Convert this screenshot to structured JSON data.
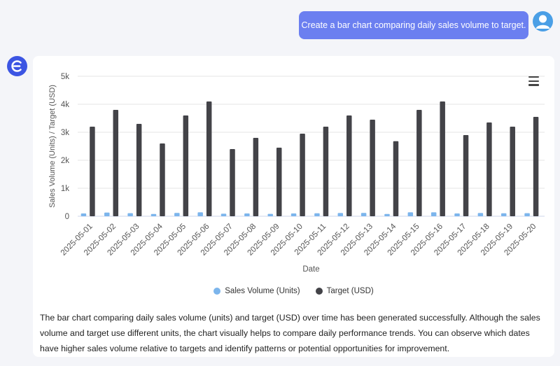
{
  "user_message": "Create a bar chart comparing daily sales volume to target.",
  "icons": {
    "user_avatar": "user-avatar-icon",
    "bot_avatar": "assistant-logo-icon",
    "menu": "hamburger-menu-icon"
  },
  "colors": {
    "user_bubble": "#6b7ff0",
    "sales_series": "#7cb5ec",
    "target_series": "#434348",
    "bot_avatar": "#3c55e3"
  },
  "answer_text": "The bar chart comparing daily sales volume (units) and target (USD) over time has been generated successfully. Although the sales volume and target use different units, the chart visually helps to compare daily performance trends. You can observe which dates have higher sales volume relative to targets and identify patterns or potential opportunities for improvement.",
  "chart_data": {
    "type": "bar",
    "xlabel": "Date",
    "ylabel": "Sales Volume (Units) / Target (USD)",
    "ylim": [
      0,
      5000
    ],
    "yticks": [
      0,
      1000,
      2000,
      3000,
      4000,
      5000
    ],
    "ytick_labels": [
      "0",
      "1k",
      "2k",
      "3k",
      "4k",
      "5k"
    ],
    "grid": true,
    "legend_position": "bottom-center",
    "categories": [
      "2025-05-01",
      "2025-05-02",
      "2025-05-03",
      "2025-05-04",
      "2025-05-05",
      "2025-05-06",
      "2025-05-07",
      "2025-05-08",
      "2025-05-09",
      "2025-05-10",
      "2025-05-11",
      "2025-05-12",
      "2025-05-13",
      "2025-05-14",
      "2025-05-15",
      "2025-05-16",
      "2025-05-17",
      "2025-05-18",
      "2025-05-19",
      "2025-05-20"
    ],
    "series": [
      {
        "name": "Sales Volume (Units)",
        "color": "#7cb5ec",
        "values": [
          100,
          130,
          110,
          80,
          120,
          140,
          90,
          100,
          85,
          100,
          105,
          115,
          120,
          80,
          140,
          140,
          100,
          115,
          105,
          110
        ]
      },
      {
        "name": "Target (USD)",
        "color": "#434348",
        "values": [
          3200,
          3800,
          3300,
          2600,
          3600,
          4100,
          2400,
          2800,
          2450,
          2950,
          3200,
          3600,
          3450,
          2680,
          3800,
          4100,
          2900,
          3350,
          3200,
          3550
        ]
      }
    ]
  }
}
